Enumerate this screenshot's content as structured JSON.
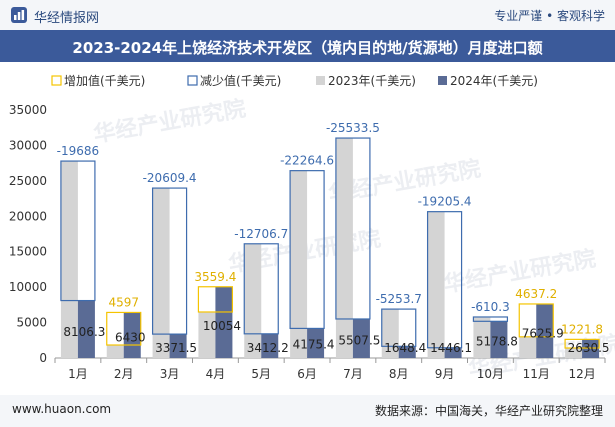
{
  "header": {
    "brand": "华经情报网",
    "slogan": "专业严谨 • 客观科学",
    "title": "2023-2024年上饶经济技术开发区（境内目的地/货源地）月度进口额"
  },
  "footer": {
    "site": "www.huaon.com",
    "source": "数据来源：中国海关，华经产业研究院整理"
  },
  "watermark": "华经产业研究院",
  "colors": {
    "bar2023": "#d4d4d4",
    "bar2024": "#5a6b95",
    "increase": "#f5c400",
    "decrease": "#3e6cae",
    "increase_label": "#e0b000",
    "decrease_label": "#3e6cae"
  },
  "chart_data": {
    "type": "bar",
    "categories": [
      "1月",
      "2月",
      "3月",
      "4月",
      "5月",
      "6月",
      "7月",
      "8月",
      "9月",
      "10月",
      "11月",
      "12月"
    ],
    "series": [
      {
        "name": "2023年(千美元)",
        "values": [
          27792.3,
          1833,
          23981,
          6494.6,
          16118.9,
          26440,
          31041,
          6902.2,
          20651.5,
          5789.1,
          2988.7,
          1408.7
        ]
      },
      {
        "name": "2024年(千美元)",
        "values": [
          8106.3,
          6430,
          3371.5,
          10054,
          3412.2,
          4175.4,
          5507.5,
          1648.4,
          1446.1,
          5178.8,
          7625.9,
          2630.5
        ]
      }
    ],
    "differences": [
      {
        "label": "-19686",
        "kind": "decrease"
      },
      {
        "label": "4597",
        "kind": "increase"
      },
      {
        "label": "-20609.4",
        "kind": "decrease"
      },
      {
        "label": "3559.4",
        "kind": "increase"
      },
      {
        "label": "-12706.7",
        "kind": "decrease"
      },
      {
        "label": "-22264.6",
        "kind": "decrease"
      },
      {
        "label": "-25533.5",
        "kind": "decrease"
      },
      {
        "label": "-5253.7",
        "kind": "decrease"
      },
      {
        "label": "-19205.4",
        "kind": "decrease"
      },
      {
        "label": "-610.3",
        "kind": "decrease"
      },
      {
        "label": "4637.2",
        "kind": "increase"
      },
      {
        "label": "1221.8",
        "kind": "increase"
      }
    ],
    "legend": [
      {
        "name": "增加值(千美元)",
        "kind": "increase"
      },
      {
        "name": "减少值(千美元)",
        "kind": "decrease"
      },
      {
        "name": "2023年(千美元)",
        "kind": "bar2023"
      },
      {
        "name": "2024年(千美元)",
        "kind": "bar2024"
      }
    ],
    "legend_position": "top-left",
    "yticks": [
      "0",
      "5000",
      "10000",
      "15000",
      "20000",
      "25000",
      "30000",
      "35000"
    ],
    "ylim": [
      0,
      35000
    ],
    "grid": false
  }
}
